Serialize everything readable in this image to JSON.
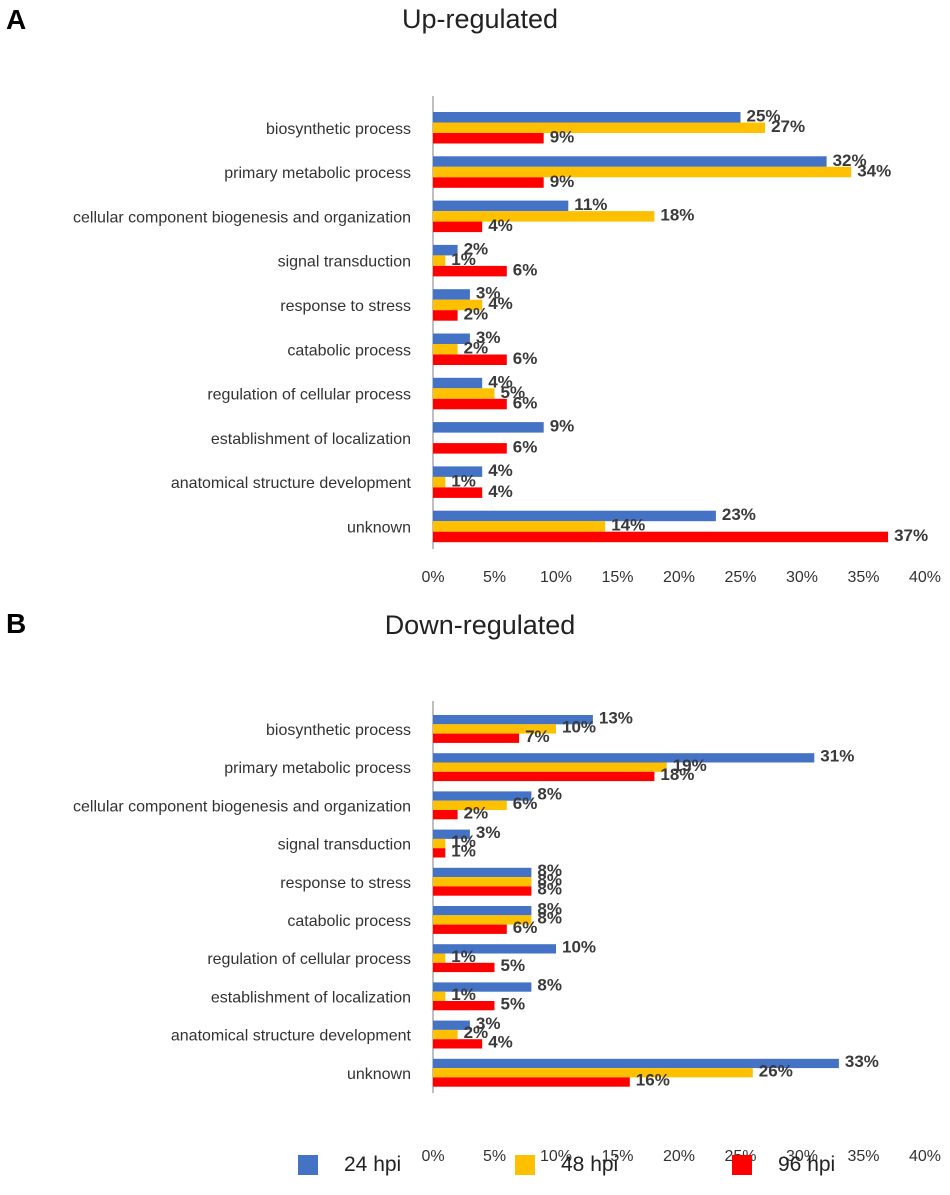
{
  "legend": [
    {
      "label": "24 hpi",
      "color": "#4472C4"
    },
    {
      "label": "48 hpi",
      "color": "#FFC000"
    },
    {
      "label": "96 hpi",
      "color": "#FF0000"
    }
  ],
  "chart_data": [
    {
      "type": "bar",
      "orientation": "horizontal",
      "panel": "A",
      "title": "Up-regulated",
      "categories": [
        "biosynthetic process",
        "primary metabolic process",
        "cellular component biogenesis and  organization",
        "signal transduction",
        "response to stress",
        "catabolic process",
        "regulation of cellular process",
        "establishment of localization",
        "anatomical structure development",
        "unknown"
      ],
      "series": [
        {
          "name": "24 hpi",
          "color": "#4472C4",
          "values": [
            25,
            32,
            11,
            2,
            3,
            3,
            4,
            9,
            4,
            23
          ],
          "labels": [
            "25%",
            "32%",
            "11%",
            "2%",
            "3%",
            "3%",
            "4%",
            "9%",
            "4%",
            "23%"
          ]
        },
        {
          "name": "48 hpi",
          "color": "#FFC000",
          "values": [
            27,
            34,
            18,
            1,
            4,
            2,
            5,
            0,
            1,
            14
          ],
          "labels": [
            "27%",
            "34%",
            "18%",
            "1%",
            "4%",
            "2%",
            "5%",
            "",
            "1%",
            "14%"
          ]
        },
        {
          "name": "96 hpi",
          "color": "#FF0000",
          "values": [
            9,
            9,
            4,
            6,
            2,
            6,
            6,
            6,
            4,
            37
          ],
          "labels": [
            "9%",
            "9%",
            "4%",
            "6%",
            "2%",
            "6%",
            "6%",
            "6%",
            "4%",
            "37%"
          ]
        }
      ],
      "xlim": [
        0,
        40
      ],
      "xticks": [
        "0%",
        "5%",
        "10%",
        "15%",
        "20%",
        "25%",
        "30%",
        "35%",
        "40%"
      ]
    },
    {
      "type": "bar",
      "orientation": "horizontal",
      "panel": "B",
      "title": "Down-regulated",
      "categories": [
        "biosynthetic process",
        "primary metabolic process",
        "cellular component biogenesis and  organization",
        "signal transduction",
        "response to stress",
        "catabolic process",
        "regulation of cellular process",
        "establishment of localization",
        "anatomical structure development",
        "unknown"
      ],
      "series": [
        {
          "name": "24 hpi",
          "color": "#4472C4",
          "values": [
            13,
            31,
            8,
            3,
            8,
            8,
            10,
            8,
            3,
            33
          ],
          "labels": [
            "13%",
            "31%",
            "8%",
            "3%",
            "8%",
            "8%",
            "10%",
            "8%",
            "3%",
            "33%"
          ]
        },
        {
          "name": "48 hpi",
          "color": "#FFC000",
          "values": [
            10,
            19,
            6,
            1,
            8,
            8,
            1,
            1,
            2,
            26
          ],
          "labels": [
            "10%",
            "19%",
            "6%",
            "1%",
            "8%",
            "8%",
            "1%",
            "1%",
            "2%",
            "26%"
          ]
        },
        {
          "name": "96 hpi",
          "color": "#FF0000",
          "values": [
            7,
            18,
            2,
            1,
            8,
            6,
            5,
            5,
            4,
            16
          ],
          "labels": [
            "7%",
            "18%",
            "2%",
            "1%",
            "8%",
            "6%",
            "5%",
            "5%",
            "4%",
            "16%"
          ]
        }
      ],
      "xlim": [
        0,
        40
      ],
      "xticks": [
        "0%",
        "5%",
        "10%",
        "15%",
        "20%",
        "25%",
        "30%",
        "35%",
        "40%"
      ]
    }
  ]
}
